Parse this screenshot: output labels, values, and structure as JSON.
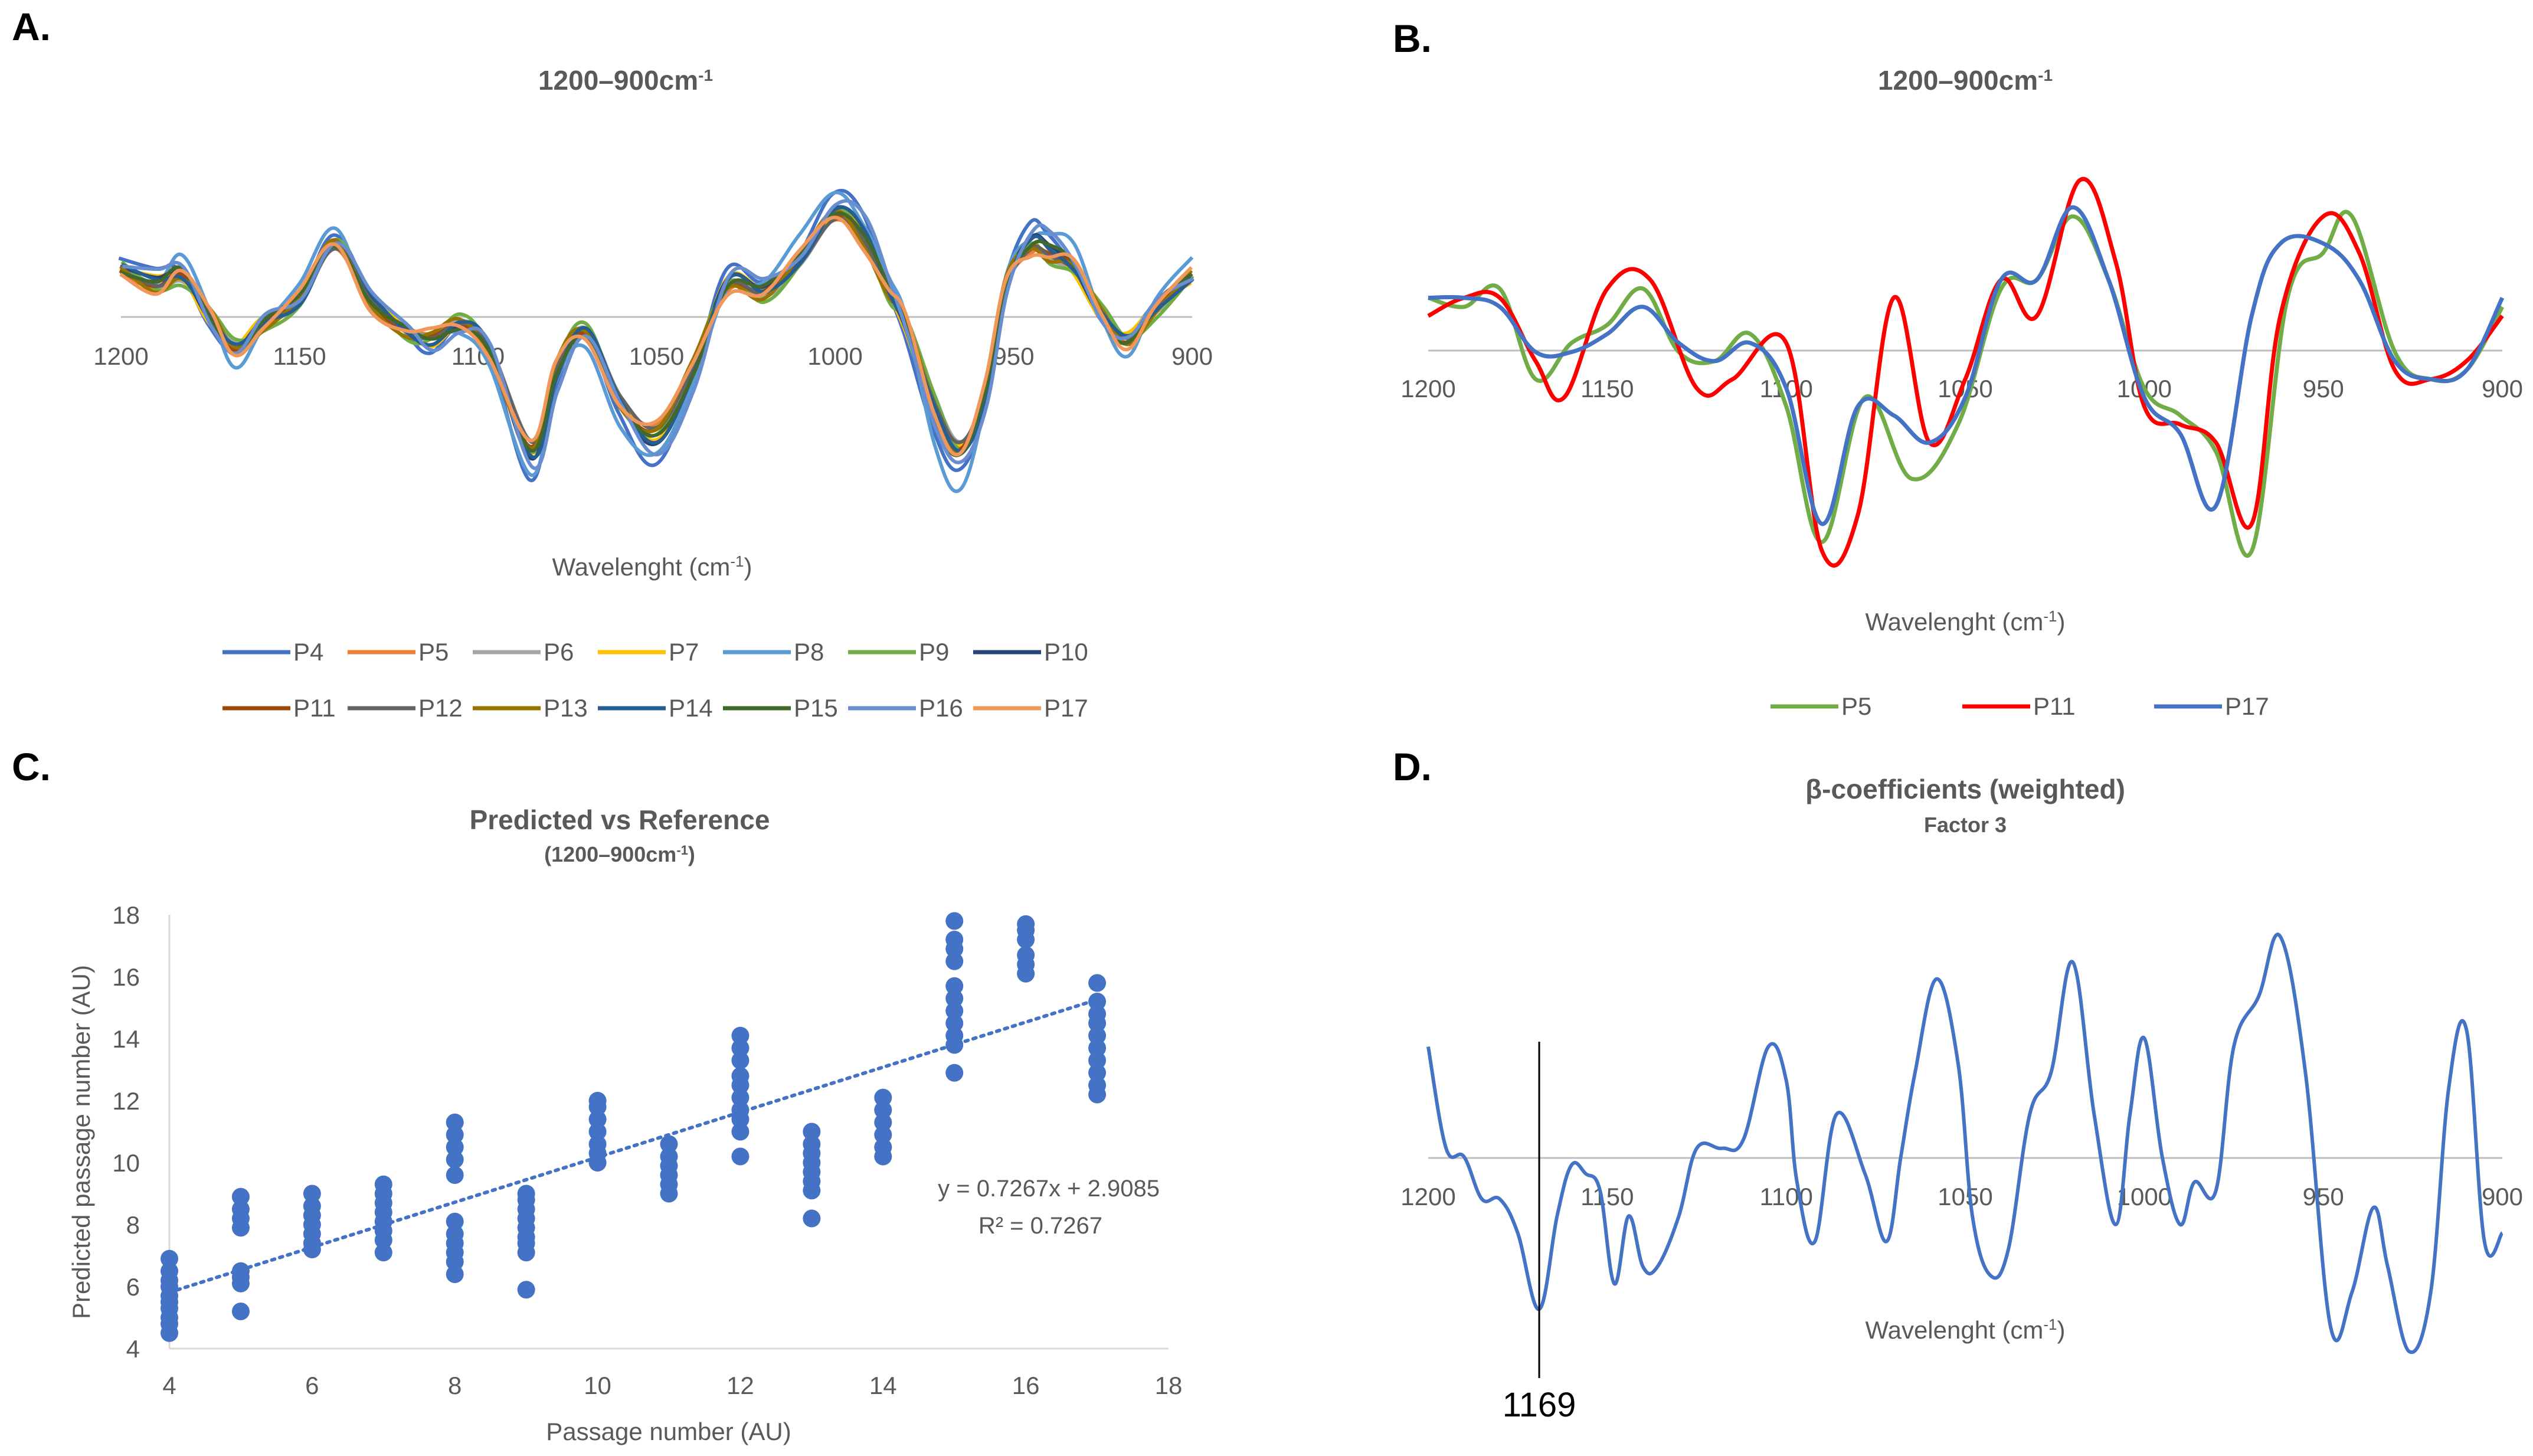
{
  "panels": {
    "A": {
      "label": "A."
    },
    "B": {
      "label": "B."
    },
    "C": {
      "label": "C."
    },
    "D": {
      "label": "D."
    }
  },
  "chart_data": [
    {
      "id": "A",
      "type": "line",
      "title": "1200–900cm",
      "title_sup": "-1",
      "xlabel": "Wavelenght (cm",
      "xlabel_sup": "-1",
      "xlabel_end": ")",
      "x_range": [
        1200,
        900
      ],
      "x_ticks": [
        "1200",
        "1150",
        "1100",
        "1050",
        "1000",
        "950",
        "900"
      ],
      "y_range": [
        -1,
        0.75
      ],
      "legend": [
        {
          "name": "P4",
          "color": "#4472C4"
        },
        {
          "name": "P5",
          "color": "#ED7D31"
        },
        {
          "name": "P6",
          "color": "#A5A5A5"
        },
        {
          "name": "P7",
          "color": "#FFC000"
        },
        {
          "name": "P8",
          "color": "#5B9BD5"
        },
        {
          "name": "P9",
          "color": "#70AD47"
        },
        {
          "name": "P10",
          "color": "#264478"
        },
        {
          "name": "P11",
          "color": "#9E480E"
        },
        {
          "name": "P12",
          "color": "#636363"
        },
        {
          "name": "P13",
          "color": "#997300"
        },
        {
          "name": "P14",
          "color": "#255E91"
        },
        {
          "name": "P15",
          "color": "#43682B"
        },
        {
          "name": "P16",
          "color": "#698ED0"
        },
        {
          "name": "P17",
          "color": "#F1975A"
        }
      ],
      "base_x": [
        1200,
        1190,
        1183,
        1175,
        1168,
        1160,
        1150,
        1140,
        1130,
        1120,
        1113,
        1105,
        1097,
        1085,
        1078,
        1070,
        1060,
        1050,
        1040,
        1030,
        1020,
        1010,
        1000,
        992,
        985,
        980,
        972,
        965,
        958,
        952,
        945,
        940,
        933,
        925,
        918,
        910,
        900
      ],
      "base_y": [
        0.3,
        0.2,
        0.25,
        0.0,
        -0.2,
        -0.05,
        0.1,
        0.45,
        0.1,
        -0.1,
        -0.15,
        -0.05,
        -0.2,
        -0.85,
        -0.35,
        -0.1,
        -0.55,
        -0.75,
        -0.35,
        0.2,
        0.15,
        0.35,
        0.65,
        0.5,
        0.15,
        -0.05,
        -0.6,
        -0.85,
        -0.5,
        0.2,
        0.45,
        0.4,
        0.3,
        0.0,
        -0.15,
        0.05,
        0.25
      ]
    },
    {
      "id": "B",
      "type": "line",
      "title": "1200–900cm",
      "title_sup": "-1",
      "xlabel": "Wavelenght (cm",
      "xlabel_sup": "-1",
      "xlabel_end": ")",
      "x_range": [
        1200,
        900
      ],
      "x_ticks": [
        "1200",
        "1150",
        "1100",
        "1050",
        "1000",
        "950",
        "900"
      ],
      "y_range": [
        -1.3,
        1.0
      ],
      "series": [
        {
          "name": "P5",
          "color": "#70AD47",
          "x": [
            1200,
            1190,
            1180,
            1170,
            1160,
            1150,
            1140,
            1130,
            1120,
            1110,
            1100,
            1090,
            1078,
            1065,
            1052,
            1040,
            1030,
            1020,
            1010,
            1000,
            990,
            980,
            970,
            960,
            950,
            942,
            930,
            920,
            910,
            900
          ],
          "y": [
            0.3,
            0.25,
            0.35,
            -0.15,
            0.05,
            0.15,
            0.35,
            0.0,
            -0.05,
            0.1,
            -0.3,
            -1.05,
            -0.25,
            -0.7,
            -0.4,
            0.35,
            0.4,
            0.75,
            0.4,
            -0.2,
            -0.35,
            -0.55,
            -1.1,
            0.3,
            0.55,
            0.75,
            0.0,
            -0.15,
            -0.1,
            0.25
          ]
        },
        {
          "name": "P11",
          "color": "#FF0000",
          "x": [
            1200,
            1190,
            1180,
            1170,
            1162,
            1150,
            1138,
            1125,
            1115,
            1100,
            1090,
            1080,
            1070,
            1060,
            1050,
            1040,
            1030,
            1018,
            1008,
            1000,
            990,
            980,
            970,
            962,
            950,
            940,
            930,
            920,
            910,
            900
          ],
          "y": [
            0.2,
            0.3,
            0.3,
            -0.05,
            -0.25,
            0.35,
            0.4,
            -0.2,
            -0.15,
            0.05,
            -1.1,
            -0.9,
            0.3,
            -0.5,
            -0.15,
            0.4,
            0.2,
            0.95,
            0.5,
            -0.3,
            -0.4,
            -0.5,
            -0.95,
            0.2,
            0.75,
            0.55,
            -0.1,
            -0.15,
            -0.05,
            0.2
          ]
        },
        {
          "name": "P17",
          "color": "#4472C4",
          "x": [
            1200,
            1190,
            1180,
            1170,
            1160,
            1150,
            1140,
            1130,
            1120,
            1110,
            1100,
            1090,
            1080,
            1070,
            1060,
            1050,
            1040,
            1030,
            1020,
            1010,
            1000,
            990,
            980,
            970,
            962,
            950,
            940,
            930,
            920,
            910,
            900
          ],
          "y": [
            0.3,
            0.3,
            0.25,
            0.0,
            0.0,
            0.1,
            0.25,
            0.05,
            -0.05,
            0.05,
            -0.2,
            -0.95,
            -0.3,
            -0.35,
            -0.5,
            -0.25,
            0.4,
            0.4,
            0.8,
            0.4,
            -0.25,
            -0.45,
            -0.85,
            0.2,
            0.6,
            0.6,
            0.4,
            -0.05,
            -0.15,
            -0.1,
            0.3
          ]
        }
      ]
    },
    {
      "id": "C",
      "type": "scatter",
      "title": "Predicted vs Reference",
      "subtitle": "(1200–900cm",
      "subtitle_sup": "-1",
      "subtitle_end": ")",
      "xlabel": "Passage number (AU)",
      "ylabel": "Predicted passage number (AU)",
      "xlim": [
        4,
        18
      ],
      "ylim": [
        4,
        18
      ],
      "x_ticks": [
        "4",
        "6",
        "8",
        "10",
        "12",
        "14",
        "16",
        "18"
      ],
      "y_ticks": [
        "4",
        "6",
        "8",
        "10",
        "12",
        "14",
        "16",
        "18"
      ],
      "color": "#4472C4",
      "points": [
        {
          "x": 4,
          "y": [
            4.5,
            4.8,
            5.0,
            5.3,
            5.5,
            5.7,
            6.0,
            6.2,
            6.5,
            6.9
          ]
        },
        {
          "x": 5,
          "y": [
            5.2,
            6.1,
            6.3,
            6.5,
            7.9,
            8.2,
            8.5,
            8.9
          ]
        },
        {
          "x": 6,
          "y": [
            7.2,
            7.4,
            7.7,
            8.0,
            8.3,
            8.6,
            9.0
          ]
        },
        {
          "x": 7,
          "y": [
            7.1,
            7.5,
            7.8,
            8.1,
            8.4,
            8.7,
            9.0,
            9.3
          ]
        },
        {
          "x": 8,
          "y": [
            6.4,
            6.8,
            7.1,
            7.4,
            7.7,
            8.1,
            9.6,
            10.1,
            10.5,
            10.9,
            11.3
          ]
        },
        {
          "x": 9,
          "y": [
            5.9,
            7.1,
            7.4,
            7.6,
            7.9,
            8.2,
            8.5,
            8.8,
            9.0
          ]
        },
        {
          "x": 10,
          "y": [
            10.0,
            10.3,
            10.6,
            11.0,
            11.4,
            11.8,
            12.0
          ]
        },
        {
          "x": 11,
          "y": [
            9.0,
            9.3,
            9.6,
            9.9,
            10.2,
            10.6
          ]
        },
        {
          "x": 12,
          "y": [
            10.2,
            11.0,
            11.4,
            11.7,
            12.1,
            12.5,
            12.8,
            13.3,
            13.7,
            14.1
          ]
        },
        {
          "x": 13,
          "y": [
            8.2,
            9.1,
            9.4,
            9.7,
            10.0,
            10.3,
            10.6,
            11.0
          ]
        },
        {
          "x": 14,
          "y": [
            10.2,
            10.5,
            10.9,
            11.3,
            11.7,
            12.1
          ]
        },
        {
          "x": 15,
          "y": [
            12.9,
            13.8,
            14.1,
            14.5,
            14.9,
            15.3,
            15.7,
            16.5,
            16.9,
            17.2,
            17.8
          ]
        },
        {
          "x": 16,
          "y": [
            16.1,
            16.4,
            16.7,
            17.2,
            17.5,
            17.7
          ]
        },
        {
          "x": 17,
          "y": [
            12.2,
            12.5,
            12.9,
            13.3,
            13.7,
            14.1,
            14.5,
            14.8,
            15.2,
            15.8
          ]
        }
      ],
      "trendline": {
        "slope": 0.7267,
        "intercept": 2.9085,
        "x_range": [
          4,
          17
        ]
      },
      "equation": "y = 0.7267x + 2.9085",
      "r_squared": "R² = 0.7267"
    },
    {
      "id": "D",
      "type": "line",
      "title": "β-coefficients (weighted)",
      "subtitle": "Factor 3",
      "xlabel": "Wavelenght (cm",
      "xlabel_sup": "-1",
      "xlabel_end": ")",
      "x_range": [
        1200,
        900
      ],
      "x_ticks": [
        "1200",
        "1150",
        "1100",
        "1050",
        "1000",
        "950",
        "900"
      ],
      "y_range": [
        -1.1,
        1.2
      ],
      "annotation": {
        "x": 1169,
        "label": "1169"
      },
      "series": [
        {
          "name": "β-coefficients",
          "color": "#4472C4",
          "x": [
            1200,
            1195,
            1190,
            1185,
            1180,
            1175,
            1169,
            1164,
            1160,
            1156,
            1152,
            1148,
            1144,
            1140,
            1136,
            1130,
            1125,
            1118,
            1112,
            1105,
            1100,
            1097,
            1092,
            1086,
            1078,
            1072,
            1068,
            1064,
            1058,
            1052,
            1048,
            1043,
            1038,
            1032,
            1026,
            1020,
            1014,
            1008,
            1004,
            1000,
            995,
            990,
            986,
            980,
            975,
            968,
            962,
            955,
            948,
            942,
            936,
            932,
            926,
            920,
            915,
            910,
            905,
            900
          ],
          "y": [
            0.7,
            0.1,
            0.05,
            -0.2,
            -0.2,
            -0.4,
            -0.85,
            -0.3,
            0.0,
            -0.05,
            -0.15,
            -0.7,
            -0.3,
            -0.6,
            -0.6,
            -0.3,
            0.1,
            0.1,
            0.15,
            0.7,
            0.5,
            -0.1,
            -0.45,
            0.3,
            -0.05,
            -0.45,
            0.05,
            0.55,
            1.1,
            0.6,
            -0.3,
            -0.65,
            -0.5,
            0.3,
            0.55,
            1.2,
            0.3,
            -0.35,
            0.3,
            0.75,
            0.05,
            -0.35,
            -0.1,
            -0.15,
            0.7,
            1.0,
            1.35,
            0.55,
            -0.95,
            -0.75,
            -0.25,
            -0.6,
            -1.1,
            -0.75,
            0.45,
            0.8,
            -0.45,
            -0.4
          ]
        }
      ]
    }
  ]
}
